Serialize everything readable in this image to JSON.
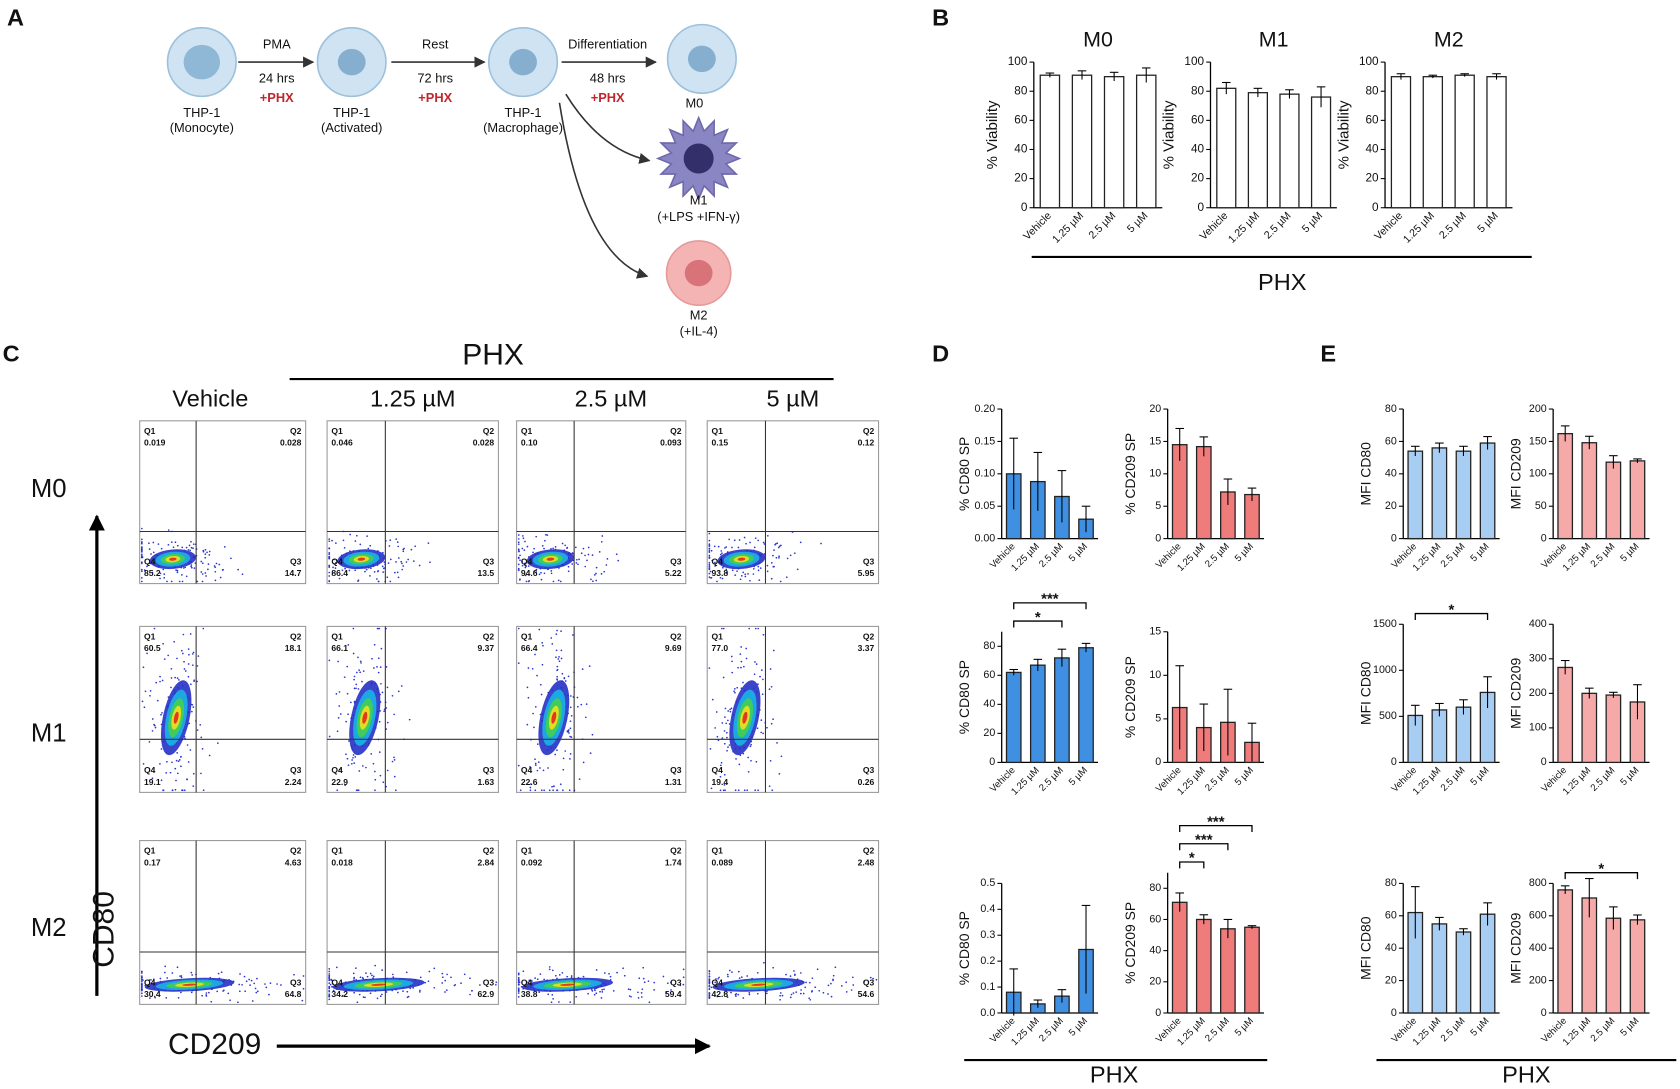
{
  "panels": [
    "A",
    "B",
    "C",
    "D",
    "E"
  ],
  "diagram": {
    "nodes": [
      {
        "label": "THP-1",
        "sub": "(Monocyte)"
      },
      {
        "label": "THP-1",
        "sub": "(Activated)"
      },
      {
        "label": "THP-1",
        "sub": "(Macrophage)"
      }
    ],
    "steps": [
      {
        "label": "PMA",
        "time": "24 hrs",
        "treatment": "+PHX"
      },
      {
        "label": "Rest",
        "time": "72 hrs",
        "treatment": "+PHX"
      },
      {
        "label": "Differentiation",
        "time": "48 hrs",
        "treatment": "+PHX"
      }
    ],
    "outcomes": [
      {
        "label": "M0"
      },
      {
        "label": "M1",
        "sub": "(+LPS +IFN-γ)"
      },
      {
        "label": "M2",
        "sub": "(+IL-4)"
      }
    ]
  },
  "group_labels": {
    "B": "PHX",
    "C": "PHX",
    "D": "PHX",
    "E": "PHX"
  },
  "flow": {
    "columns": [
      "Vehicle",
      "1.25 µM",
      "2.5 µM",
      "5 µM"
    ],
    "rows": [
      "M0",
      "M1",
      "M2"
    ],
    "y_label": "CD80",
    "x_label": "CD209",
    "quadrant_names": [
      "Q1",
      "Q2",
      "Q3",
      "Q4"
    ],
    "values": [
      [
        [
          "0.019",
          "0.028",
          "14.7",
          "85.2"
        ],
        [
          "0.046",
          "0.028",
          "13.5",
          "86.4"
        ],
        [
          "0.10",
          "0.093",
          "5.22",
          "94.6"
        ],
        [
          "0.15",
          "0.12",
          "5.95",
          "93.8"
        ]
      ],
      [
        [
          "60.5",
          "18.1",
          "2.24",
          "19.1"
        ],
        [
          "66.1",
          "9.37",
          "1.63",
          "22.9"
        ],
        [
          "66.4",
          "9.69",
          "1.31",
          "22.6"
        ],
        [
          "77.0",
          "3.37",
          "0.26",
          "19.4"
        ]
      ],
      [
        [
          "0.17",
          "4.63",
          "64.8",
          "30.4"
        ],
        [
          "0.018",
          "2.84",
          "62.9",
          "34.2"
        ],
        [
          "0.092",
          "1.74",
          "59.4",
          "38.8"
        ],
        [
          "0.089",
          "2.48",
          "54.6",
          "42.8"
        ]
      ]
    ]
  },
  "chart_data": [
    {
      "type": "bar",
      "title": "M0",
      "ylabel": "% Viability",
      "categories": [
        "Vehicle",
        "1.25 µM",
        "2.5 µM",
        "5 µM"
      ],
      "values": [
        91,
        91,
        90,
        91
      ],
      "errors": [
        1.5,
        3,
        3,
        5
      ],
      "color": "#ffffff",
      "ylim": [
        0,
        100
      ],
      "yticks": [
        0,
        20,
        40,
        60,
        80,
        100
      ]
    },
    {
      "type": "bar",
      "title": "M1",
      "ylabel": "% Viability",
      "categories": [
        "Vehicle",
        "1.25 µM",
        "2.5 µM",
        "5 µM"
      ],
      "values": [
        82,
        79,
        78,
        76
      ],
      "errors": [
        4,
        3,
        3,
        7
      ],
      "color": "#ffffff",
      "ylim": [
        0,
        100
      ],
      "yticks": [
        0,
        20,
        40,
        60,
        80,
        100
      ]
    },
    {
      "type": "bar",
      "title": "M2",
      "ylabel": "% Viability",
      "categories": [
        "Vehicle",
        "1.25 µM",
        "2.5 µM",
        "5 µM"
      ],
      "values": [
        90,
        90,
        91,
        90
      ],
      "errors": [
        2,
        1,
        1,
        2
      ],
      "color": "#ffffff",
      "ylim": [
        0,
        100
      ],
      "yticks": [
        0,
        20,
        40,
        60,
        80,
        100
      ]
    },
    {
      "type": "bar",
      "ylabel": "% CD80 SP",
      "categories": [
        "Vehicle",
        "1.25 µM",
        "2.5 µM",
        "5 µM"
      ],
      "values": [
        0.1,
        0.088,
        0.065,
        0.03
      ],
      "errors": [
        0.055,
        0.045,
        0.04,
        0.02
      ],
      "color": "#3f8fe2",
      "ylim": [
        0,
        0.2
      ],
      "yticks": [
        {
          "value": 0,
          "label": "0.00"
        },
        {
          "value": 0.05,
          "label": "0.05"
        },
        {
          "value": 0.1,
          "label": "0.10"
        },
        {
          "value": 0.15,
          "label": "0.15"
        },
        {
          "value": 0.2,
          "label": "0.20"
        }
      ]
    },
    {
      "type": "bar",
      "ylabel": "% CD209 SP",
      "categories": [
        "Vehicle",
        "1.25 µM",
        "2.5 µM",
        "5 µM"
      ],
      "values": [
        14.5,
        14.2,
        7.2,
        6.8
      ],
      "errors": [
        2.5,
        1.5,
        2,
        1
      ],
      "color": "#f07b7b",
      "ylim": [
        0,
        20
      ],
      "yticks": [
        0,
        5,
        10,
        15,
        20
      ]
    },
    {
      "type": "bar",
      "ylabel": "% CD80 SP",
      "categories": [
        "Vehicle",
        "1.25 µM",
        "2.5 µM",
        "5 µM"
      ],
      "values": [
        62,
        67,
        72,
        79
      ],
      "errors": [
        2,
        4,
        6,
        3
      ],
      "color": "#3f8fe2",
      "ylim": [
        0,
        90
      ],
      "yticks": [
        0,
        20,
        40,
        60,
        80
      ],
      "significance": [
        {
          "pair": [
            0,
            2
          ],
          "label": "*"
        },
        {
          "pair": [
            0,
            3
          ],
          "label": "***"
        }
      ]
    },
    {
      "type": "bar",
      "ylabel": "% CD209 SP",
      "categories": [
        "Vehicle",
        "1.25 µM",
        "2.5 µM",
        "5 µM"
      ],
      "values": [
        6.3,
        4,
        4.6,
        2.3
      ],
      "errors": [
        4.8,
        2.7,
        3.8,
        2.2
      ],
      "color": "#f07b7b",
      "ylim": [
        0,
        15
      ],
      "yticks": [
        0,
        5,
        10,
        15
      ]
    },
    {
      "type": "bar",
      "ylabel": "% CD80 SP",
      "categories": [
        "Vehicle",
        "1.25 µM",
        "2.5 µM",
        "5 µM"
      ],
      "values": [
        0.08,
        0.035,
        0.065,
        0.245
      ],
      "errors": [
        0.09,
        0.015,
        0.025,
        0.17
      ],
      "color": "#3f8fe2",
      "ylim": [
        0,
        0.5
      ],
      "yticks": [
        {
          "value": 0,
          "label": "0.0"
        },
        {
          "value": 0.1,
          "label": "0.1"
        },
        {
          "value": 0.2,
          "label": "0.2"
        },
        {
          "value": 0.3,
          "label": "0.3"
        },
        {
          "value": 0.4,
          "label": "0.4"
        },
        {
          "value": 0.5,
          "label": "0.5"
        }
      ]
    },
    {
      "type": "bar",
      "ylabel": "% CD209 SP",
      "categories": [
        "Vehicle",
        "1.25 µM",
        "2.5 µM",
        "5 µM"
      ],
      "values": [
        71,
        60,
        54,
        55
      ],
      "errors": [
        6,
        3,
        6,
        1
      ],
      "color": "#f07b7b",
      "ylim": [
        0,
        90
      ],
      "yticks": [
        0,
        20,
        40,
        60,
        80
      ],
      "significance": [
        {
          "pair": [
            0,
            1
          ],
          "label": "*"
        },
        {
          "pair": [
            0,
            2
          ],
          "label": "***"
        },
        {
          "pair": [
            0,
            3
          ],
          "label": "***"
        }
      ]
    },
    {
      "type": "bar",
      "ylabel": "MFI CD80",
      "categories": [
        "Vehicle",
        "1.25 µM",
        "2.5 µM",
        "5 µM"
      ],
      "values": [
        54,
        56,
        54,
        59
      ],
      "errors": [
        3,
        3,
        3,
        4
      ],
      "color": "#a8cdf3",
      "ylim": [
        0,
        80
      ],
      "yticks": [
        0,
        20,
        40,
        60,
        80
      ]
    },
    {
      "type": "bar",
      "ylabel": "MFI CD209",
      "categories": [
        "Vehicle",
        "1.25 µM",
        "2.5 µM",
        "5 µM"
      ],
      "values": [
        162,
        148,
        118,
        120
      ],
      "errors": [
        12,
        10,
        10,
        3
      ],
      "color": "#f6a9a9",
      "ylim": [
        0,
        200
      ],
      "yticks": [
        0,
        50,
        100,
        150,
        200
      ]
    },
    {
      "type": "bar",
      "ylabel": "MFI CD80",
      "categories": [
        "Vehicle",
        "1.25 µM",
        "2.5 µM",
        "5 µM"
      ],
      "values": [
        510,
        570,
        600,
        760
      ],
      "errors": [
        110,
        70,
        80,
        170
      ],
      "color": "#a8cdf3",
      "ylim": [
        0,
        1500
      ],
      "yticks": [
        0,
        500,
        1000,
        1500
      ],
      "significance": [
        {
          "pair": [
            0,
            3
          ],
          "label": "*"
        }
      ]
    },
    {
      "type": "bar",
      "ylabel": "MFI CD209",
      "categories": [
        "Vehicle",
        "1.25 µM",
        "2.5 µM",
        "5 µM"
      ],
      "values": [
        275,
        200,
        195,
        175
      ],
      "errors": [
        20,
        15,
        8,
        50
      ],
      "color": "#f6a9a9",
      "ylim": [
        0,
        400
      ],
      "yticks": [
        0,
        100,
        200,
        300,
        400
      ]
    },
    {
      "type": "bar",
      "ylabel": "MFI CD80",
      "categories": [
        "Vehicle",
        "1.25 µM",
        "2.5 µM",
        "5 µM"
      ],
      "values": [
        62,
        55,
        50,
        61
      ],
      "errors": [
        16,
        4,
        2,
        7
      ],
      "color": "#a8cdf3",
      "ylim": [
        0,
        80
      ],
      "yticks": [
        0,
        20,
        40,
        60,
        80
      ]
    },
    {
      "type": "bar",
      "ylabel": "MFI CD209",
      "categories": [
        "Vehicle",
        "1.25 µM",
        "2.5 µM",
        "5 µM"
      ],
      "values": [
        760,
        710,
        585,
        575
      ],
      "errors": [
        25,
        120,
        70,
        30
      ],
      "color": "#f6a9a9",
      "ylim": [
        0,
        800
      ],
      "yticks": [
        0,
        200,
        400,
        600,
        800
      ],
      "significance": [
        {
          "pair": [
            0,
            3
          ],
          "label": "*"
        }
      ]
    }
  ]
}
